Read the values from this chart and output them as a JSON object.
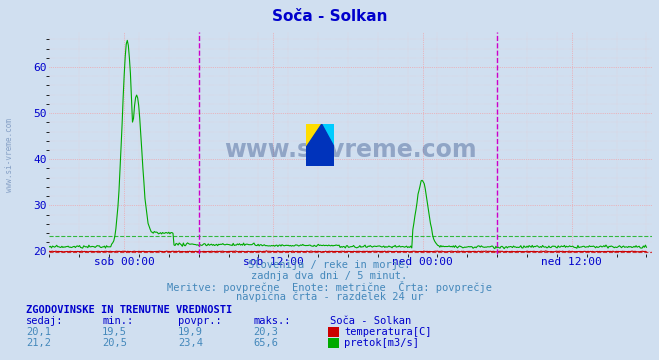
{
  "title": "Soča - Solkan",
  "title_color": "#0000cc",
  "bg_color": "#d0dff0",
  "plot_bg_color": "#d0dff0",
  "grid_color_major": "#ff8888",
  "grid_color_minor": "#ffbbbb",
  "x_tick_labels": [
    "sob 00:00",
    "sob 12:00",
    "ned 00:00",
    "ned 12:00"
  ],
  "y_ticks": [
    20,
    30,
    40,
    50,
    60
  ],
  "temp_color": "#cc0000",
  "flow_color": "#00aa00",
  "vline_color": "#cc00cc",
  "watermark_color": "#1a3a7a",
  "footnote_color": "#4488bb",
  "label_color": "#0000cc",
  "temp_avg": 19.9,
  "flow_avg": 23.4,
  "n_points": 576,
  "sidebar_text": "www.si-vreme.com",
  "bottom_text1": "Slovenija / reke in morje.",
  "bottom_text2": "zadnja dva dni / 5 minut.",
  "bottom_text3": "Meritve: povprečne  Enote: metrične  Črta: povprečje",
  "bottom_text4": "navpična črta - razdelek 24 ur",
  "table_header": "ZGODOVINSKE IN TRENUTNE VREDNOSTI",
  "col_headers": [
    "sedaj:",
    "min.:",
    "povpr.:",
    "maks.:",
    "Soča - Solkan"
  ],
  "row1": [
    "20,1",
    "19,5",
    "19,9",
    "20,3"
  ],
  "row2": [
    "21,2",
    "20,5",
    "23,4",
    "65,6"
  ],
  "row1_label": "temperatura[C]",
  "row2_label": "pretok[m3/s]"
}
